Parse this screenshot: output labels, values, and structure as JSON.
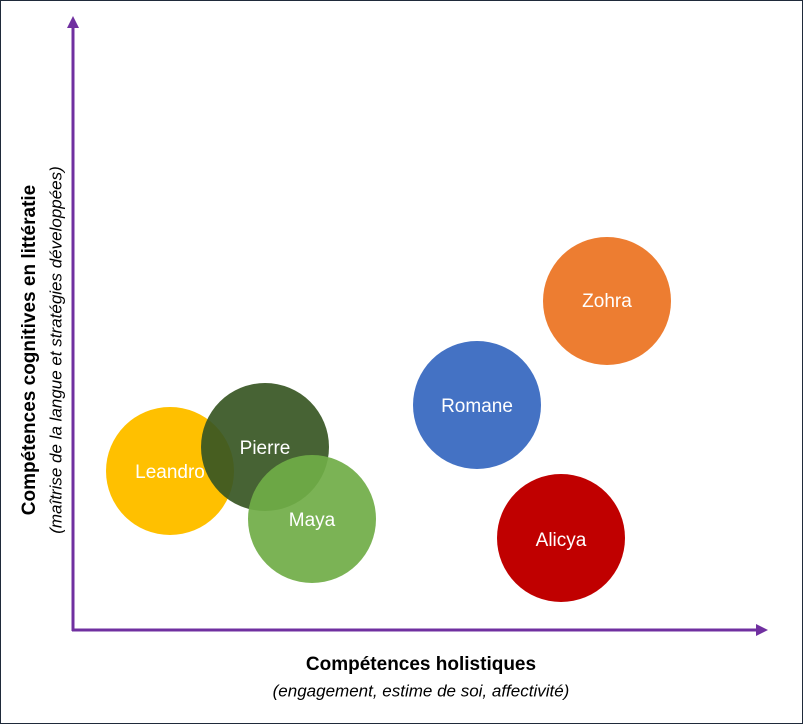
{
  "axes": {
    "y": {
      "title": "Compétences cognitives en littératie",
      "subtitle": "(maîtrise de la langue et stratégies développées)"
    },
    "x": {
      "title": "Compétences holistiques",
      "subtitle": "(engagement, estime de soi, affectivité)"
    }
  },
  "nodes": [
    {
      "label": "Zohra"
    },
    {
      "label": "Romane"
    },
    {
      "label": "Alicya"
    },
    {
      "label": "Leandro"
    },
    {
      "label": "Pierre"
    },
    {
      "label": "Maya"
    }
  ]
}
